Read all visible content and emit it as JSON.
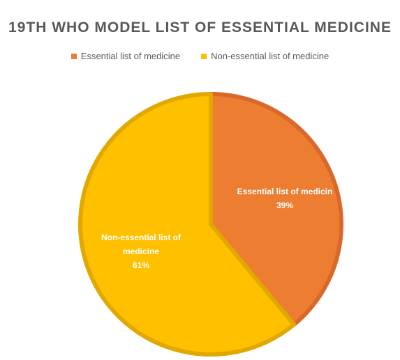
{
  "chart_data": {
    "type": "pie",
    "title": "19TH WHO MODEL LIST OF ESSENTIAL MEDICINE",
    "legend_position": "top",
    "slices": [
      {
        "name": "Essential list of medicine",
        "value": 39,
        "label_lines": [
          "Essential list of medicin"
        ],
        "pct_label": "39%",
        "color": "#ED7D31",
        "stroke": "#D9692A"
      },
      {
        "name": "Non-essential list of medicine",
        "value": 61,
        "label_lines": [
          "Non-essential list of",
          "medicine"
        ],
        "pct_label": "61%",
        "color": "#FFC000",
        "stroke": "#E0A800"
      }
    ]
  }
}
